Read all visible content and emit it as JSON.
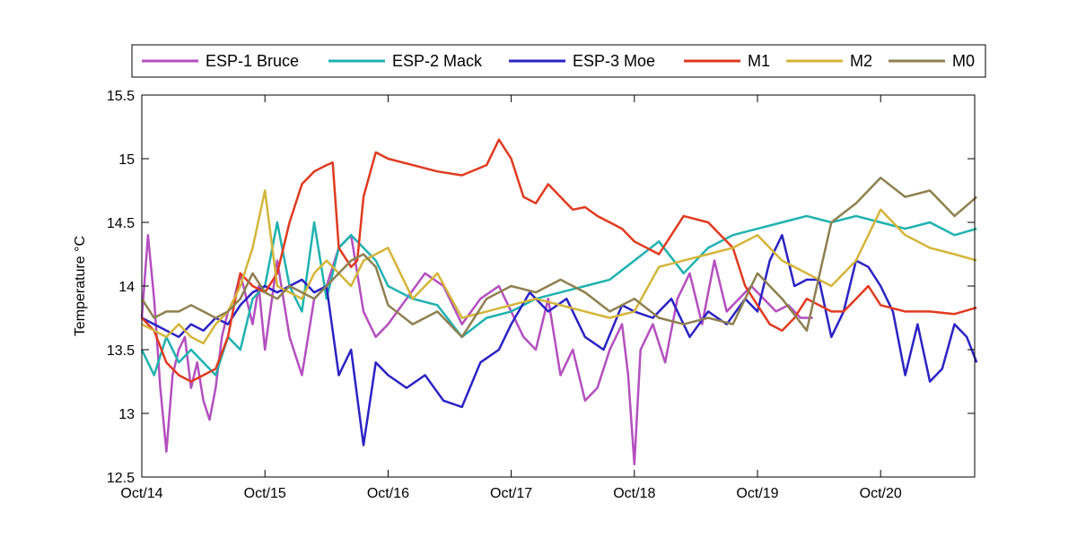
{
  "chart_data": {
    "type": "line",
    "title": "",
    "xlabel": "",
    "ylabel": "Temperature °C",
    "xlim": [
      "Oct/14",
      "Oct/20 + 0.78 day"
    ],
    "ylim": [
      12.5,
      15.5
    ],
    "x_ticks": [
      "Oct/14",
      "Oct/15",
      "Oct/16",
      "Oct/17",
      "Oct/18",
      "Oct/19",
      "Oct/20"
    ],
    "y_ticks": [
      "12.5",
      "13",
      "13.5",
      "14",
      "14.5",
      "15",
      "15.5"
    ],
    "grid": false,
    "legend_position": "top, horizontal, outside",
    "series": [
      {
        "name": "ESP-1 Bruce",
        "color": "#b44fbf",
        "x": [
          "Oct/14 00:00",
          "Oct/14 01:12",
          "Oct/14 02:24",
          "Oct/14 03:36",
          "Oct/14 04:48",
          "Oct/14 06:00",
          "Oct/14 07:12",
          "Oct/14 08:24",
          "Oct/14 09:36",
          "Oct/14 10:48",
          "Oct/14 12:00",
          "Oct/14 13:12",
          "Oct/14 14:24",
          "Oct/14 15:36",
          "Oct/14 16:48",
          "Oct/14 18:00",
          "Oct/14 19:12",
          "Oct/14 20:24",
          "Oct/14 21:36",
          "Oct/14 22:48",
          "Oct/15 00:00",
          "Oct/15 02:24",
          "Oct/15 04:48",
          "Oct/15 07:12",
          "Oct/15 09:36",
          "Oct/15 12:00",
          "Oct/15 14:24",
          "Oct/15 16:48",
          "Oct/15 19:12",
          "Oct/15 21:36",
          "Oct/16 00:00",
          "Oct/16 03:36",
          "Oct/16 07:12",
          "Oct/16 10:48",
          "Oct/16 14:24",
          "Oct/16 18:00",
          "Oct/16 21:36",
          "Oct/17 00:00",
          "Oct/17 02:24",
          "Oct/17 04:48",
          "Oct/17 07:12",
          "Oct/17 09:36",
          "Oct/17 12:00",
          "Oct/17 14:24",
          "Oct/17 16:48",
          "Oct/17 19:12",
          "Oct/17 21:36",
          "Oct/17 22:48",
          "Oct/18 00:00",
          "Oct/18 01:12",
          "Oct/18 03:36",
          "Oct/18 06:00",
          "Oct/18 08:24",
          "Oct/18 10:48",
          "Oct/18 13:12",
          "Oct/18 15:36",
          "Oct/18 18:00",
          "Oct/18 20:24",
          "Oct/18 22:48",
          "Oct/19 01:12",
          "Oct/19 03:36",
          "Oct/19 06:00",
          "Oct/19 08:24",
          "Oct/19 10:48"
        ],
        "values": [
          13.75,
          14.4,
          13.9,
          13.2,
          12.7,
          13.3,
          13.5,
          13.6,
          13.2,
          13.4,
          13.1,
          12.95,
          13.2,
          13.6,
          13.8,
          13.9,
          14.1,
          13.9,
          13.7,
          14.0,
          13.5,
          14.2,
          13.6,
          13.3,
          13.9,
          14.0,
          14.3,
          14.4,
          13.8,
          13.6,
          13.7,
          13.9,
          14.1,
          14.0,
          13.7,
          13.9,
          14.0,
          13.8,
          13.6,
          13.5,
          13.9,
          13.3,
          13.5,
          13.1,
          13.2,
          13.5,
          13.7,
          13.3,
          12.6,
          13.5,
          13.7,
          13.4,
          13.9,
          14.1,
          13.7,
          14.2,
          13.8,
          13.9,
          14.0,
          13.9,
          13.8,
          13.85,
          13.75,
          13.75
        ]
      },
      {
        "name": "ESP-2 Mack",
        "color": "#1fb2b0",
        "x": [
          "Oct/14 00:00",
          "Oct/14 02:24",
          "Oct/14 04:48",
          "Oct/14 07:12",
          "Oct/14 09:36",
          "Oct/14 12:00",
          "Oct/14 14:24",
          "Oct/14 16:48",
          "Oct/14 19:12",
          "Oct/14 21:36",
          "Oct/15 00:00",
          "Oct/15 02:24",
          "Oct/15 04:48",
          "Oct/15 07:12",
          "Oct/15 09:36",
          "Oct/15 12:00",
          "Oct/15 14:24",
          "Oct/15 16:48",
          "Oct/15 19:12",
          "Oct/15 21:36",
          "Oct/16 00:00",
          "Oct/16 04:48",
          "Oct/16 09:36",
          "Oct/16 14:24",
          "Oct/16 19:12",
          "Oct/17 00:00",
          "Oct/17 04:48",
          "Oct/17 09:36",
          "Oct/17 14:24",
          "Oct/17 19:12",
          "Oct/18 00:00",
          "Oct/18 04:48",
          "Oct/18 09:36",
          "Oct/18 14:24",
          "Oct/18 19:12",
          "Oct/19 00:00",
          "Oct/19 04:48",
          "Oct/19 09:36",
          "Oct/19 14:24",
          "Oct/19 19:12",
          "Oct/20 00:00",
          "Oct/20 04:48",
          "Oct/20 09:36",
          "Oct/20 14:24",
          "Oct/20 18:43"
        ],
        "values": [
          13.5,
          13.3,
          13.6,
          13.4,
          13.5,
          13.4,
          13.3,
          13.6,
          13.5,
          13.9,
          14.0,
          14.5,
          14.0,
          13.8,
          14.5,
          13.9,
          14.3,
          14.4,
          14.3,
          14.2,
          14.0,
          13.9,
          13.85,
          13.6,
          13.75,
          13.8,
          13.9,
          13.95,
          14.0,
          14.05,
          14.2,
          14.35,
          14.1,
          14.3,
          14.4,
          14.45,
          14.5,
          14.55,
          14.5,
          14.55,
          14.5,
          14.45,
          14.5,
          14.4,
          14.45
        ]
      },
      {
        "name": "ESP-3 Moe",
        "color": "#2c22c4",
        "x": [
          "Oct/14 00:00",
          "Oct/14 02:24",
          "Oct/14 04:48",
          "Oct/14 07:12",
          "Oct/14 09:36",
          "Oct/14 12:00",
          "Oct/14 14:24",
          "Oct/14 16:48",
          "Oct/14 19:12",
          "Oct/14 21:36",
          "Oct/15 00:00",
          "Oct/15 02:24",
          "Oct/15 04:48",
          "Oct/15 07:12",
          "Oct/15 09:36",
          "Oct/15 12:00",
          "Oct/15 14:24",
          "Oct/15 16:48",
          "Oct/15 19:12",
          "Oct/15 21:36",
          "Oct/16 00:00",
          "Oct/16 03:36",
          "Oct/16 07:12",
          "Oct/16 10:48",
          "Oct/16 14:24",
          "Oct/16 18:00",
          "Oct/16 21:36",
          "Oct/17 00:00",
          "Oct/17 03:36",
          "Oct/17 07:12",
          "Oct/17 10:48",
          "Oct/17 14:24",
          "Oct/17 18:00",
          "Oct/17 21:36",
          "Oct/18 00:00",
          "Oct/18 03:36",
          "Oct/18 07:12",
          "Oct/18 10:48",
          "Oct/18 14:24",
          "Oct/18 18:00",
          "Oct/18 21:36",
          "Oct/19 00:00",
          "Oct/19 02:24",
          "Oct/19 04:48",
          "Oct/19 07:12",
          "Oct/19 09:36",
          "Oct/19 12:00",
          "Oct/19 14:24",
          "Oct/19 16:48",
          "Oct/19 19:12",
          "Oct/19 21:36",
          "Oct/20 00:00",
          "Oct/20 02:24",
          "Oct/20 04:48",
          "Oct/20 07:12",
          "Oct/20 09:36",
          "Oct/20 12:00",
          "Oct/20 14:24",
          "Oct/20 16:48",
          "Oct/20 18:43"
        ],
        "values": [
          13.75,
          13.7,
          13.65,
          13.6,
          13.7,
          13.65,
          13.75,
          13.7,
          13.85,
          13.95,
          14.0,
          13.95,
          14.0,
          14.05,
          13.95,
          14.0,
          13.3,
          13.5,
          12.75,
          13.4,
          13.3,
          13.2,
          13.3,
          13.1,
          13.05,
          13.4,
          13.5,
          13.7,
          13.95,
          13.8,
          13.9,
          13.6,
          13.5,
          13.85,
          13.8,
          13.75,
          13.9,
          13.6,
          13.8,
          13.7,
          13.9,
          13.8,
          14.2,
          14.4,
          14.0,
          14.05,
          14.05,
          13.6,
          13.8,
          14.2,
          14.15,
          14.0,
          13.8,
          13.3,
          13.7,
          13.25,
          13.35,
          13.7,
          13.6,
          13.4
        ]
      },
      {
        "name": "M1",
        "color": "#e03a20",
        "x": [
          "Oct/14 00:00",
          "Oct/14 02:24",
          "Oct/14 04:48",
          "Oct/14 07:12",
          "Oct/14 09:36",
          "Oct/14 12:00",
          "Oct/14 14:24",
          "Oct/14 16:48",
          "Oct/14 19:12",
          "Oct/14 21:36",
          "Oct/15 00:00",
          "Oct/15 02:24",
          "Oct/15 04:48",
          "Oct/15 07:12",
          "Oct/15 09:36",
          "Oct/15 12:00",
          "Oct/15 13:12",
          "Oct/15 14:24",
          "Oct/15 16:48",
          "Oct/15 18:00",
          "Oct/15 19:12",
          "Oct/15 21:36",
          "Oct/16 00:00",
          "Oct/16 04:48",
          "Oct/16 09:36",
          "Oct/16 14:24",
          "Oct/16 19:12",
          "Oct/16 21:36",
          "Oct/17 00:00",
          "Oct/17 02:24",
          "Oct/17 04:48",
          "Oct/17 07:12",
          "Oct/17 09:36",
          "Oct/17 12:00",
          "Oct/17 14:24",
          "Oct/17 16:48",
          "Oct/17 19:12",
          "Oct/17 21:36",
          "Oct/18 00:00",
          "Oct/18 04:48",
          "Oct/18 09:36",
          "Oct/18 14:24",
          "Oct/18 19:12",
          "Oct/18 21:36",
          "Oct/19 00:00",
          "Oct/19 02:24",
          "Oct/19 04:48",
          "Oct/19 07:12",
          "Oct/19 09:36",
          "Oct/19 12:00",
          "Oct/19 14:24",
          "Oct/19 16:48",
          "Oct/19 19:12",
          "Oct/19 21:36",
          "Oct/20 00:00",
          "Oct/20 04:48",
          "Oct/20 09:36",
          "Oct/20 14:24",
          "Oct/20 18:43"
        ],
        "values": [
          13.75,
          13.65,
          13.4,
          13.3,
          13.25,
          13.3,
          13.35,
          13.6,
          14.1,
          14.0,
          13.95,
          14.1,
          14.5,
          14.8,
          14.9,
          14.95,
          14.97,
          14.3,
          14.15,
          14.2,
          14.7,
          15.05,
          15.0,
          14.95,
          14.9,
          14.87,
          14.95,
          15.15,
          15.0,
          14.7,
          14.65,
          14.8,
          14.7,
          14.6,
          14.62,
          14.55,
          14.5,
          14.45,
          14.35,
          14.25,
          14.55,
          14.5,
          14.3,
          14.0,
          13.85,
          13.7,
          13.65,
          13.75,
          13.9,
          13.85,
          13.8,
          13.8,
          13.9,
          14.0,
          13.85,
          13.8,
          13.8,
          13.78,
          13.83
        ]
      },
      {
        "name": "M2",
        "color": "#d4b53a",
        "x": [
          "Oct/14 00:00",
          "Oct/14 02:24",
          "Oct/14 04:48",
          "Oct/14 07:12",
          "Oct/14 09:36",
          "Oct/14 12:00",
          "Oct/14 14:24",
          "Oct/14 16:48",
          "Oct/14 19:12",
          "Oct/14 21:36",
          "Oct/15 00:00",
          "Oct/15 02:24",
          "Oct/15 04:48",
          "Oct/15 07:12",
          "Oct/15 09:36",
          "Oct/15 12:00",
          "Oct/15 14:24",
          "Oct/15 16:48",
          "Oct/15 19:12",
          "Oct/15 21:36",
          "Oct/16 00:00",
          "Oct/16 04:48",
          "Oct/16 09:36",
          "Oct/16 14:24",
          "Oct/16 19:12",
          "Oct/17 00:00",
          "Oct/17 04:48",
          "Oct/17 09:36",
          "Oct/17 14:24",
          "Oct/17 19:12",
          "Oct/18 00:00",
          "Oct/18 04:48",
          "Oct/18 09:36",
          "Oct/18 14:24",
          "Oct/18 19:12",
          "Oct/19 00:00",
          "Oct/19 04:48",
          "Oct/19 09:36",
          "Oct/19 14:24",
          "Oct/19 19:12",
          "Oct/20 00:00",
          "Oct/20 04:48",
          "Oct/20 09:36",
          "Oct/20 14:24",
          "Oct/20 18:43"
        ],
        "values": [
          13.7,
          13.65,
          13.6,
          13.7,
          13.6,
          13.55,
          13.7,
          13.8,
          14.0,
          14.3,
          14.75,
          14.0,
          13.95,
          13.9,
          14.1,
          14.2,
          14.1,
          14.0,
          14.2,
          14.25,
          14.3,
          13.9,
          14.1,
          13.75,
          13.8,
          13.85,
          13.9,
          13.85,
          13.8,
          13.75,
          13.8,
          14.15,
          14.2,
          14.25,
          14.3,
          14.4,
          14.2,
          14.1,
          14.0,
          14.2,
          14.6,
          14.4,
          14.3,
          14.25,
          14.2
        ]
      },
      {
        "name": "M0",
        "color": "#8e8050",
        "x": [
          "Oct/14 00:00",
          "Oct/14 02:24",
          "Oct/14 04:48",
          "Oct/14 07:12",
          "Oct/14 09:36",
          "Oct/14 12:00",
          "Oct/14 14:24",
          "Oct/14 16:48",
          "Oct/14 19:12",
          "Oct/14 21:36",
          "Oct/15 00:00",
          "Oct/15 02:24",
          "Oct/15 04:48",
          "Oct/15 07:12",
          "Oct/15 09:36",
          "Oct/15 12:00",
          "Oct/15 14:24",
          "Oct/15 16:48",
          "Oct/15 19:12",
          "Oct/15 21:36",
          "Oct/16 00:00",
          "Oct/16 04:48",
          "Oct/16 09:36",
          "Oct/16 14:24",
          "Oct/16 19:12",
          "Oct/17 00:00",
          "Oct/17 04:48",
          "Oct/17 09:36",
          "Oct/17 14:24",
          "Oct/17 19:12",
          "Oct/18 00:00",
          "Oct/18 04:48",
          "Oct/18 09:36",
          "Oct/18 14:24",
          "Oct/18 19:12",
          "Oct/19 00:00",
          "Oct/19 04:48",
          "Oct/19 09:36",
          "Oct/19 14:24",
          "Oct/19 19:12",
          "Oct/20 00:00",
          "Oct/20 04:48",
          "Oct/20 09:36",
          "Oct/20 14:24",
          "Oct/20 18:43"
        ],
        "values": [
          13.9,
          13.75,
          13.8,
          13.8,
          13.85,
          13.8,
          13.75,
          13.8,
          13.9,
          14.1,
          13.95,
          13.9,
          14.0,
          13.95,
          13.9,
          14.0,
          14.1,
          14.2,
          14.25,
          14.15,
          13.85,
          13.7,
          13.8,
          13.6,
          13.9,
          14.0,
          13.95,
          14.05,
          13.95,
          13.8,
          13.9,
          13.75,
          13.7,
          13.75,
          13.7,
          14.1,
          13.9,
          13.65,
          14.5,
          14.65,
          14.85,
          14.7,
          14.75,
          14.55,
          14.7
        ]
      }
    ]
  }
}
